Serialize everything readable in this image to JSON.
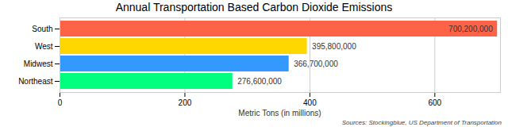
{
  "chart_data": {
    "type": "bar",
    "orientation": "horizontal",
    "title": "Annual Transportation Based Carbon Dioxide Emissions",
    "x_label": "Metric Tons (in millions)",
    "caption": "Sources: Stockingblue, US Department of Transportation",
    "categories": [
      "South",
      "West",
      "Midwest",
      "Northeast"
    ],
    "values": [
      700.2,
      395.8,
      366.7,
      276.6
    ],
    "value_labels": [
      "700,200,000",
      "395,800,000",
      "366,700,000",
      "276,600,000"
    ],
    "colors": [
      "#ff6347",
      "#ffd700",
      "#3399ff",
      "#00ff7f"
    ],
    "data_labels": true,
    "xlim": [
      0,
      705
    ],
    "xticks": [
      0,
      200,
      400,
      600
    ],
    "grid": true
  }
}
